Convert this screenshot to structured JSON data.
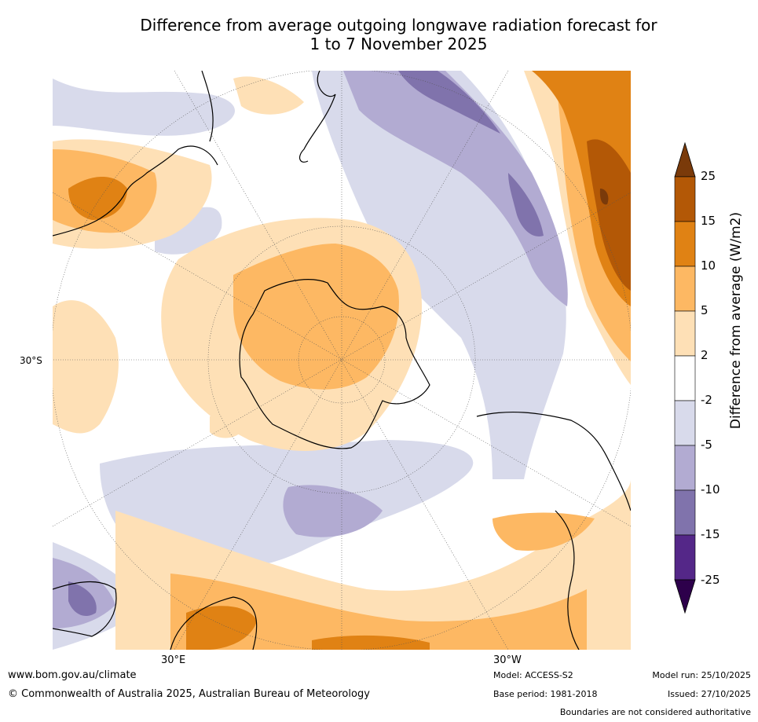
{
  "title": {
    "line1": "Difference from average outgoing longwave radiation forecast for",
    "line2": "1 to 7 November 2025"
  },
  "map": {
    "latitude_label": "30°S",
    "longitude_labels": [
      "30°E",
      "30°W"
    ]
  },
  "colorbar": {
    "title": "Difference from average (W/m2)",
    "ticks": [
      "25",
      "15",
      "10",
      "5",
      "2",
      "-2",
      "-5",
      "-10",
      "-15",
      "-25"
    ],
    "colors": {
      "above_25": "#7a3a0a",
      "15_to_25": "#b35806",
      "10_to_15": "#e08214",
      "5_to_10": "#fdb863",
      "2_to_5": "#fee0b6",
      "neutral": "#ffffff",
      "m5_to_m2": "#d8daeb",
      "m10_to_m5": "#b2abd2",
      "m15_to_m10": "#8073ac",
      "m25_to_m15": "#542788",
      "below_m25": "#2d004b"
    }
  },
  "footer": {
    "website": "www.bom.gov.au/climate",
    "copyright": "© Commonwealth of Australia 2025, Australian Bureau of Meteorology",
    "model": "Model: ACCESS-S2",
    "base_period": "Base period: 1981-2018",
    "model_run": "Model run: 25/10/2025",
    "issued": "Issued: 27/10/2025",
    "disclaimer": "Boundaries are not considered authoritative"
  }
}
